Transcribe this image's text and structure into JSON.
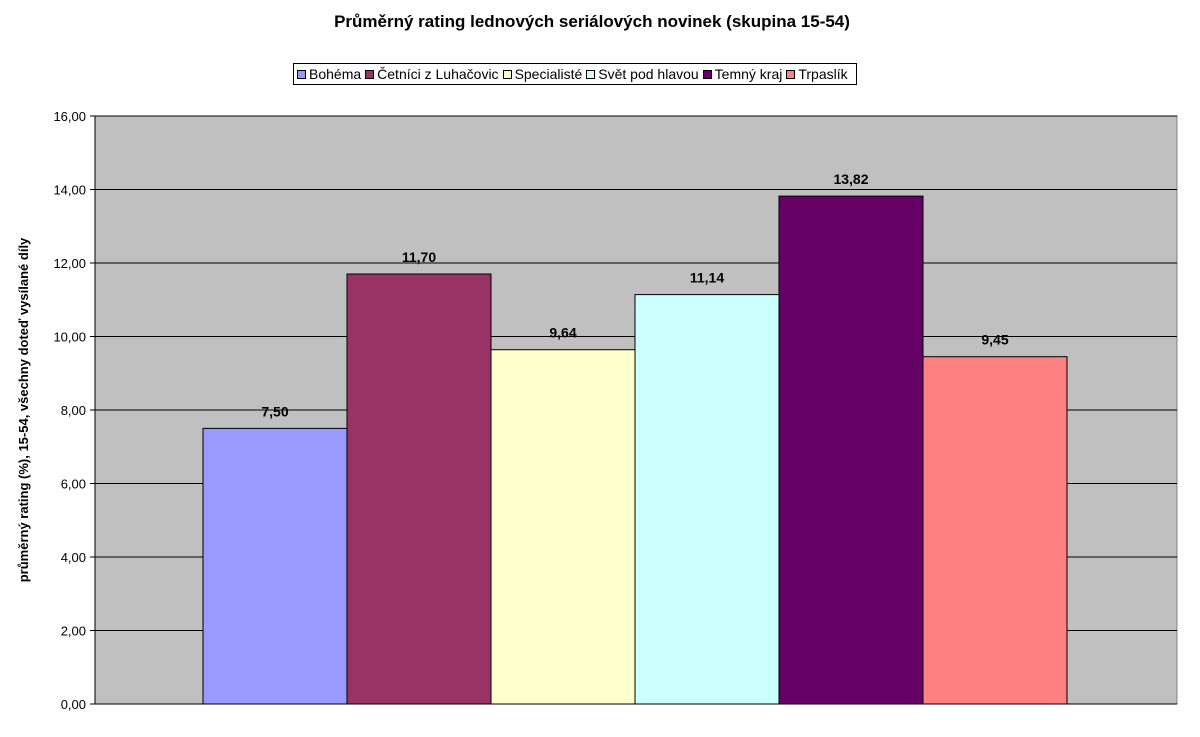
{
  "chart_data": {
    "type": "bar",
    "title": "Průměrný rating lednových seriálových novinek (skupina 15-54)",
    "xlabel": "",
    "ylabel": "průměrný rating (%), 15-54, všechny doteď vysílané díly",
    "ylim": [
      0,
      16
    ],
    "ytick_step": 2,
    "yticks": [
      "0,00",
      "2,00",
      "4,00",
      "6,00",
      "8,00",
      "10,00",
      "12,00",
      "14,00",
      "16,00"
    ],
    "grid": true,
    "legend_position": "top",
    "plot_background": "#c0c0c0",
    "series": [
      {
        "name": "Bohéma",
        "value": 7.5,
        "label": "7,50",
        "color": "#9999ff"
      },
      {
        "name": "Četníci z Luhačovic",
        "value": 11.7,
        "label": "11,70",
        "color": "#993366"
      },
      {
        "name": "Specialisté",
        "value": 9.64,
        "label": "9,64",
        "color": "#ffffcc"
      },
      {
        "name": "Svět pod hlavou",
        "value": 11.14,
        "label": "11,14",
        "color": "#ccffff"
      },
      {
        "name": "Temný kraj",
        "value": 13.82,
        "label": "13,82",
        "color": "#660066"
      },
      {
        "name": "Trpaslík",
        "value": 9.45,
        "label": "9,45",
        "color": "#ff8080"
      }
    ]
  }
}
